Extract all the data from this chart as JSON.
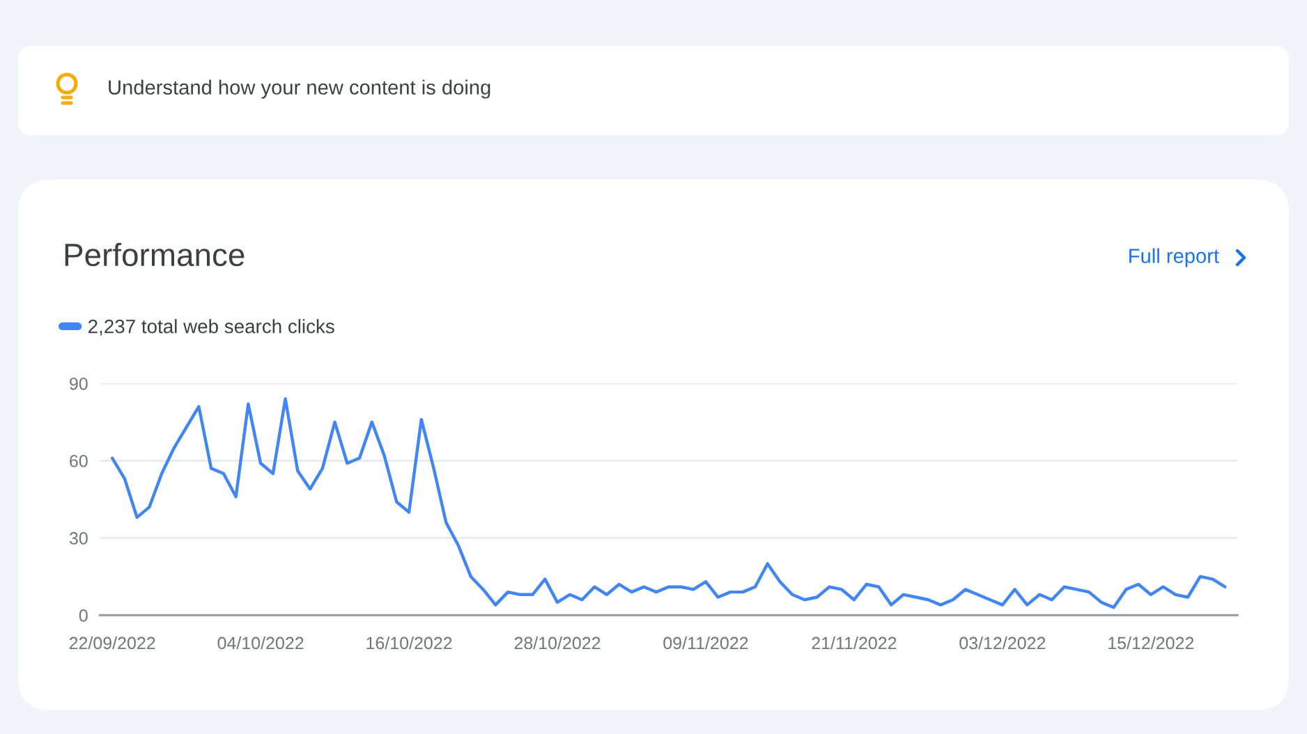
{
  "chart_data": {
    "type": "line",
    "title": "Performance",
    "annotations": [
      "Understand how your new content is doing",
      "Full report"
    ],
    "x": [
      "2022-09-22",
      "2022-09-23",
      "2022-09-24",
      "2022-09-25",
      "2022-09-26",
      "2022-09-27",
      "2022-09-28",
      "2022-09-29",
      "2022-09-30",
      "2022-10-01",
      "2022-10-02",
      "2022-10-03",
      "2022-10-04",
      "2022-10-05",
      "2022-10-06",
      "2022-10-07",
      "2022-10-08",
      "2022-10-09",
      "2022-10-10",
      "2022-10-11",
      "2022-10-12",
      "2022-10-13",
      "2022-10-14",
      "2022-10-15",
      "2022-10-16",
      "2022-10-17",
      "2022-10-18",
      "2022-10-19",
      "2022-10-20",
      "2022-10-21",
      "2022-10-22",
      "2022-10-23",
      "2022-10-24",
      "2022-10-25",
      "2022-10-26",
      "2022-10-27",
      "2022-10-28",
      "2022-10-29",
      "2022-10-30",
      "2022-10-31",
      "2022-11-01",
      "2022-11-02",
      "2022-11-03",
      "2022-11-04",
      "2022-11-05",
      "2022-11-06",
      "2022-11-07",
      "2022-11-08",
      "2022-11-09",
      "2022-11-10",
      "2022-11-11",
      "2022-11-12",
      "2022-11-13",
      "2022-11-14",
      "2022-11-15",
      "2022-11-16",
      "2022-11-17",
      "2022-11-18",
      "2022-11-19",
      "2022-11-20",
      "2022-11-21",
      "2022-11-22",
      "2022-11-23",
      "2022-11-24",
      "2022-11-25",
      "2022-11-26",
      "2022-11-27",
      "2022-11-28",
      "2022-11-29",
      "2022-11-30",
      "2022-12-01",
      "2022-12-02",
      "2022-12-03",
      "2022-12-04",
      "2022-12-05",
      "2022-12-06",
      "2022-12-07",
      "2022-12-08",
      "2022-12-09",
      "2022-12-10",
      "2022-12-11",
      "2022-12-12",
      "2022-12-13",
      "2022-12-14",
      "2022-12-15",
      "2022-12-16",
      "2022-12-17",
      "2022-12-18",
      "2022-12-19",
      "2022-12-20",
      "2022-12-21"
    ],
    "series": [
      {
        "name": "2,237 total web search clicks",
        "color": "#4285f4",
        "values": [
          61,
          53,
          38,
          42,
          55,
          65,
          73,
          81,
          57,
          55,
          46,
          82,
          59,
          55,
          84,
          56,
          49,
          57,
          75,
          59,
          61,
          75,
          62,
          44,
          40,
          76,
          57,
          36,
          27,
          15,
          10,
          4,
          9,
          8,
          8,
          14,
          5,
          8,
          6,
          11,
          8,
          12,
          9,
          11,
          9,
          11,
          11,
          10,
          13,
          7,
          9,
          9,
          11,
          20,
          13,
          8,
          6,
          7,
          11,
          10,
          6,
          12,
          11,
          4,
          8,
          7,
          6,
          4,
          6,
          10,
          8,
          6,
          4,
          10,
          4,
          8,
          6,
          11,
          10,
          9,
          5,
          3,
          10,
          12,
          8,
          11,
          8,
          7,
          15,
          14,
          11
        ]
      }
    ],
    "xlim": [
      "2022-09-21",
      "2022-12-22"
    ],
    "xticks": [
      {
        "value": "2022-09-22",
        "label": "22/09/2022"
      },
      {
        "value": "2022-10-04",
        "label": "04/10/2022"
      },
      {
        "value": "2022-10-16",
        "label": "16/10/2022"
      },
      {
        "value": "2022-10-28",
        "label": "28/10/2022"
      },
      {
        "value": "2022-11-09",
        "label": "09/11/2022"
      },
      {
        "value": "2022-11-21",
        "label": "21/11/2022"
      },
      {
        "value": "2022-12-03",
        "label": "03/12/2022"
      },
      {
        "value": "2022-12-15",
        "label": "15/12/2022"
      }
    ],
    "ylim": [
      0,
      90
    ],
    "yticks": [
      0,
      30,
      60,
      90
    ],
    "grid": "y",
    "legend": "top left",
    "line_style": "solid"
  }
}
